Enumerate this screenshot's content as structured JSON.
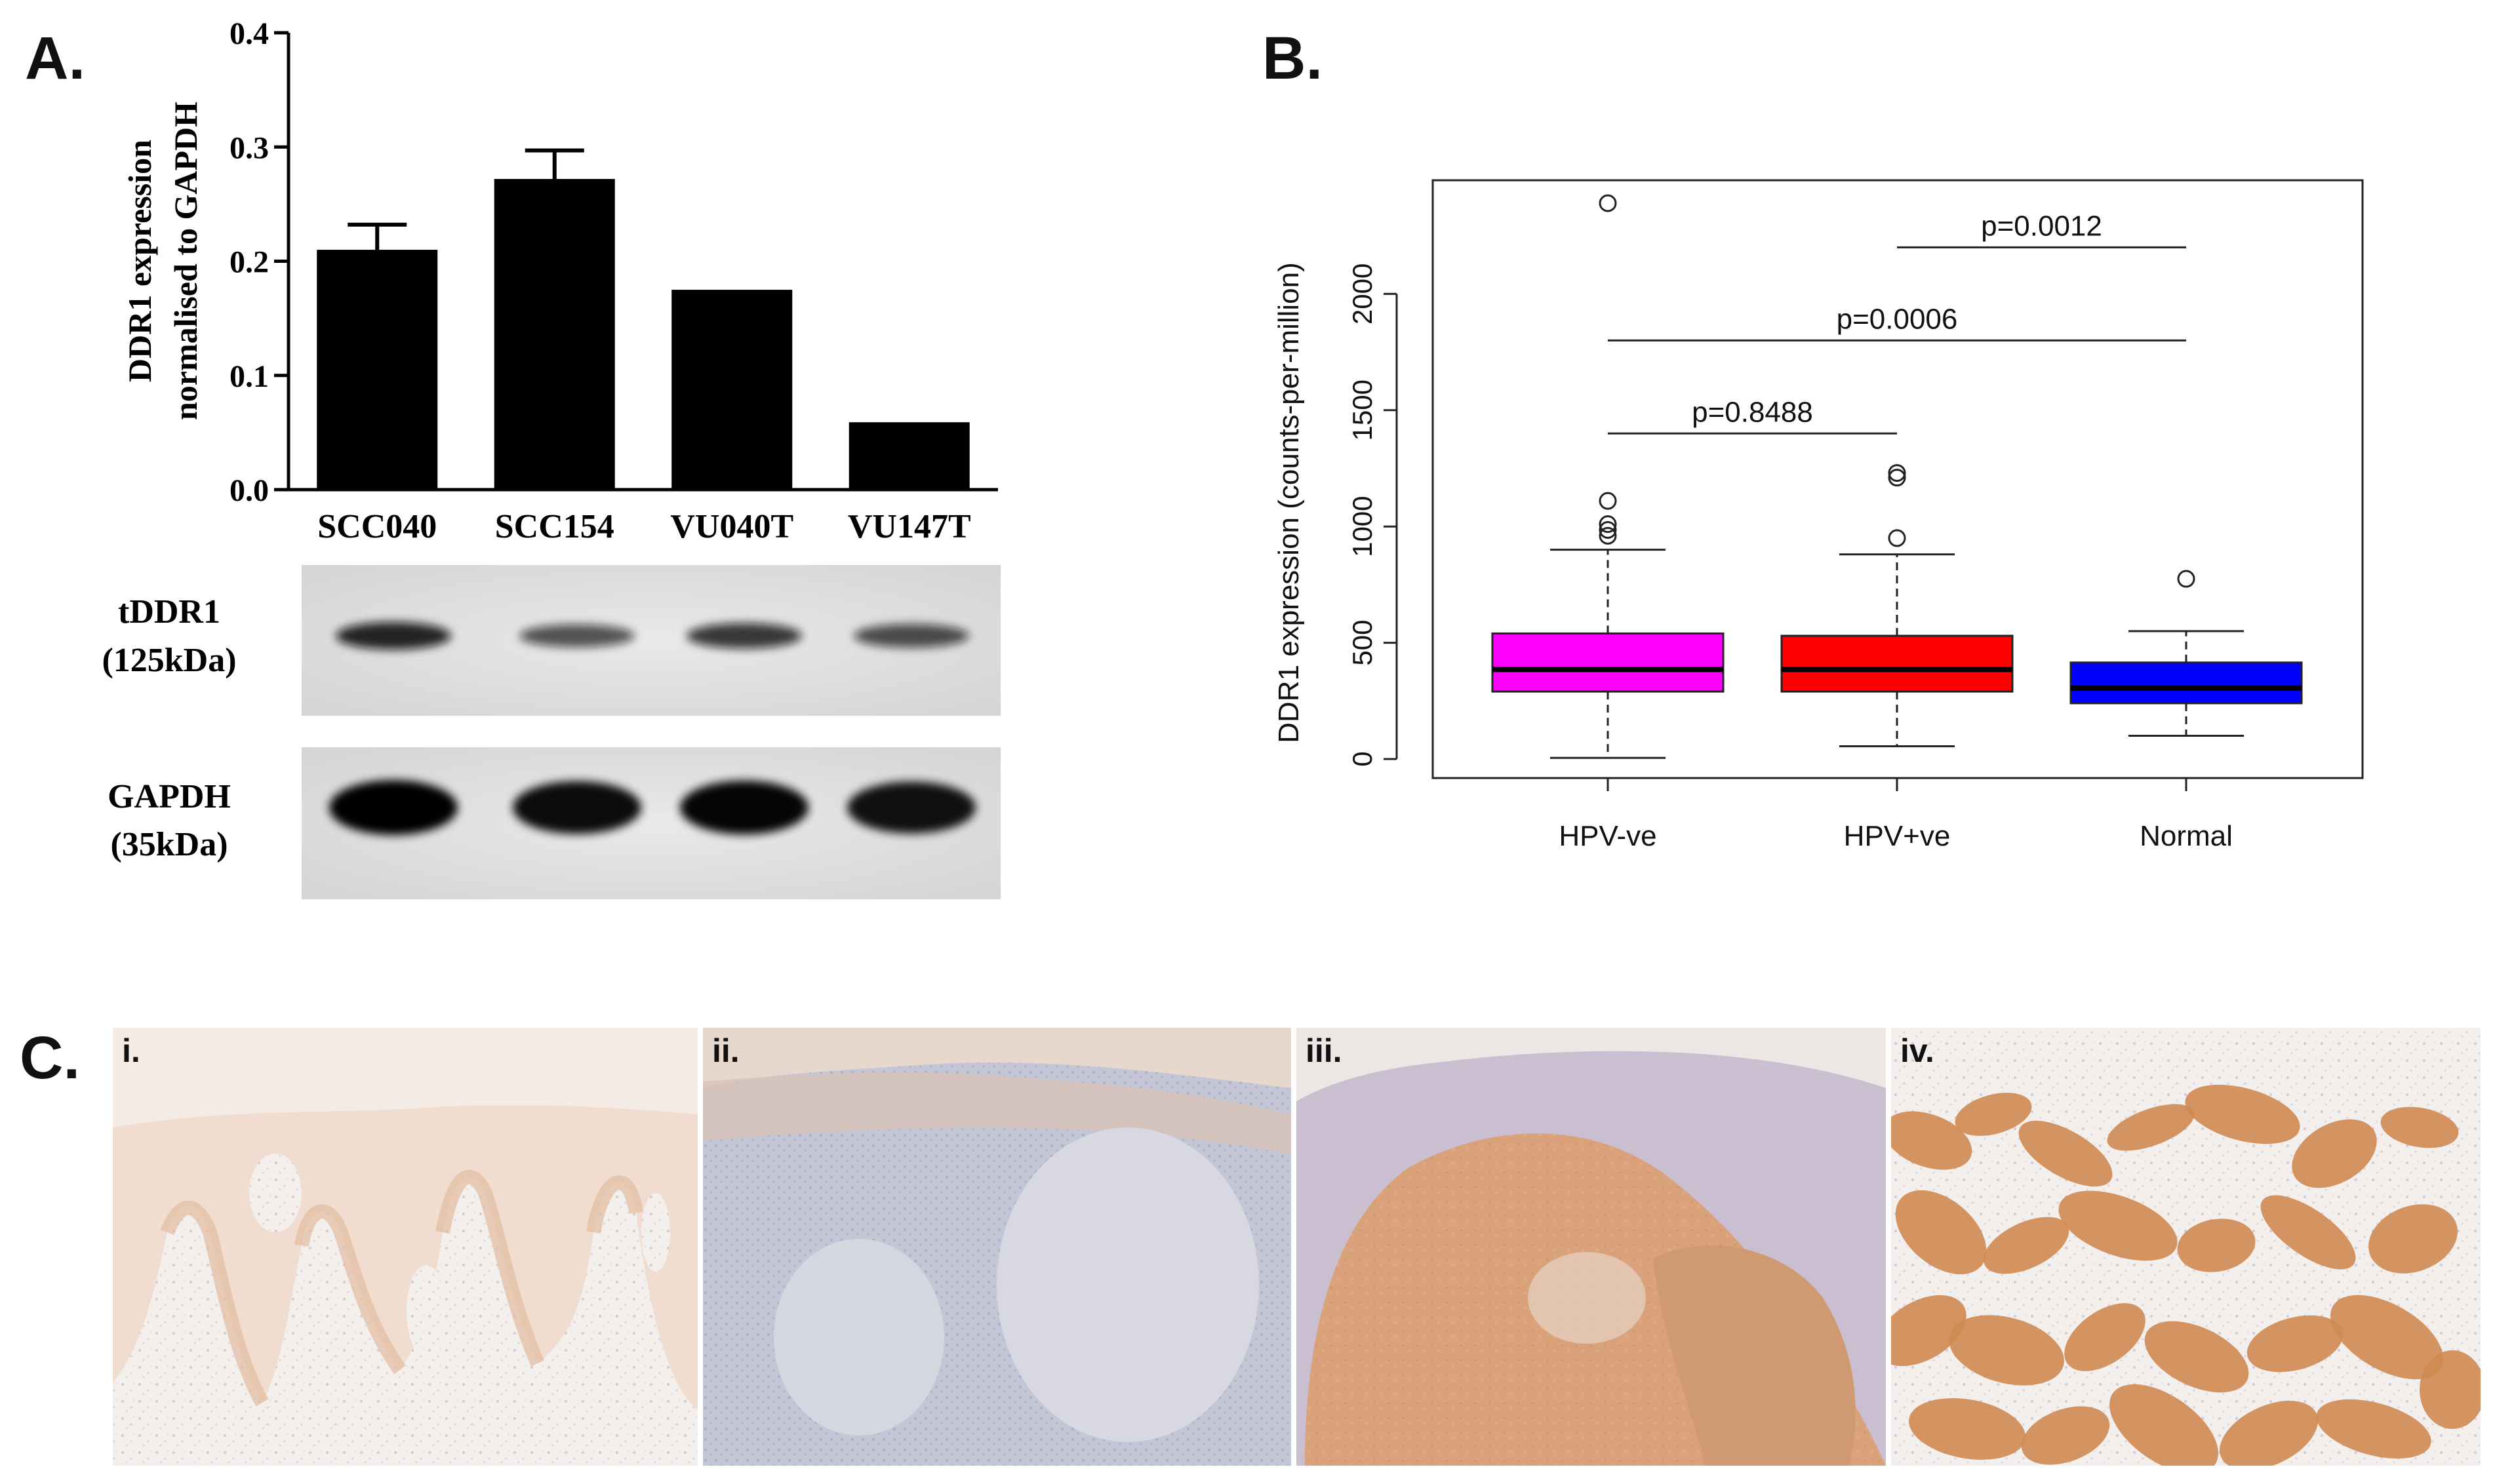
{
  "panels": {
    "a": {
      "letter": "A."
    },
    "b": {
      "letter": "B."
    },
    "c": {
      "letter": "C.",
      "tiles": [
        "i.",
        "ii.",
        "iii.",
        "iv."
      ]
    }
  },
  "chart_data": [
    {
      "type": "bar",
      "panel": "A.",
      "ylabel_line1": "DDR1 expression",
      "ylabel_line2": "normalised to GAPDH",
      "categories": [
        "SCC040",
        "SCC154",
        "VU040T",
        "VU147T"
      ],
      "values": [
        0.21,
        0.272,
        0.175,
        0.059
      ],
      "errors": [
        0.022,
        0.025,
        0.002,
        0.001
      ],
      "ylim": [
        0,
        0.4
      ],
      "yticks": [
        "0.0",
        "0.1",
        "0.2",
        "0.3",
        "0.4"
      ],
      "ytick_values": [
        0,
        0.1,
        0.2,
        0.3,
        0.4
      ],
      "bar_color": "#000000",
      "blot_labels": [
        {
          "line1": "tDDR1",
          "line2": "(125kDa)"
        },
        {
          "line1": "GAPDH",
          "line2": "(35kDa)"
        }
      ],
      "blot_intensity_tddr1": [
        0.9,
        0.55,
        0.75,
        0.6
      ],
      "blot_intensity_gapdh": [
        1.0,
        0.9,
        0.95,
        0.85
      ]
    },
    {
      "type": "box",
      "panel": "B.",
      "ylabel": "DDR1 expression (counts-per-million)",
      "categories": [
        "HPV-ve",
        "HPV+ve",
        "Normal"
      ],
      "ylim": [
        0,
        2500
      ],
      "yticks": [
        "0",
        "500",
        "1000",
        "1500",
        "2000"
      ],
      "ytick_values": [
        0,
        500,
        1000,
        1500,
        2000
      ],
      "boxes": [
        {
          "name": "HPV-ve",
          "color": "#ff00ff",
          "whisker_low": 5,
          "q1": 290,
          "median": 385,
          "q3": 540,
          "whisker_high": 900,
          "outliers": [
            2390,
            1110,
            1010,
            985,
            960
          ]
        },
        {
          "name": "HPV+ve",
          "color": "#ff0000",
          "whisker_low": 55,
          "q1": 290,
          "median": 385,
          "q3": 530,
          "whisker_high": 880,
          "outliers": [
            1230,
            1210,
            950
          ]
        },
        {
          "name": "Normal",
          "color": "#0000ff",
          "whisker_low": 100,
          "q1": 240,
          "median": 305,
          "q3": 415,
          "whisker_high": 550,
          "outliers": [
            775
          ]
        }
      ],
      "comparisons": [
        {
          "label": "p=0.0012",
          "from": "HPV+ve",
          "to": "Normal",
          "y": 2200
        },
        {
          "label": "p=0.0006",
          "from": "HPV-ve",
          "to": "Normal",
          "y": 1800
        },
        {
          "label": "p=0.8488",
          "from": "HPV-ve",
          "to": "HPV+ve",
          "y": 1400
        }
      ]
    }
  ]
}
